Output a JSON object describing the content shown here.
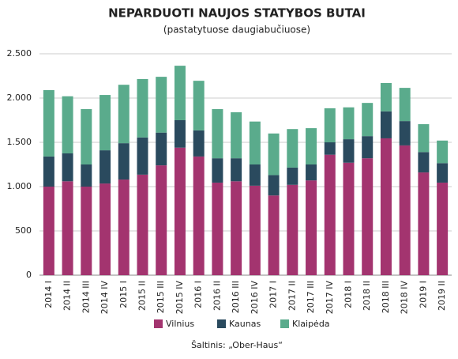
{
  "chart_data": {
    "type": "stacked_bar",
    "title": "NEPARDUOTI NAUJOS STATYBOS BUTAI",
    "subtitle": "(pastatytuose daugiabučiuose)",
    "source": "Šaltinis: „Ober-Haus“",
    "categories": [
      "2014 I",
      "2014 II",
      "2014 III",
      "2014 IV",
      "2015 I",
      "2015 II",
      "2015 III",
      "2015 IV",
      "2016 I",
      "2016 II",
      "2016 III",
      "2016 IV",
      "2017 I",
      "2017 II",
      "2017 III",
      "2017 IV",
      "2018 I",
      "2018 II",
      "2018 III",
      "2018 IV",
      "2019 I",
      "2019 II"
    ],
    "series": [
      {
        "name": "Vilnius",
        "color": "#a3346f",
        "values": [
          1000,
          1060,
          1000,
          1035,
          1080,
          1135,
          1240,
          1440,
          1340,
          1045,
          1060,
          1010,
          900,
          1020,
          1070,
          1360,
          1270,
          1320,
          1545,
          1465,
          1160,
          1045
        ]
      },
      {
        "name": "Kaunas",
        "color": "#2a4a5e",
        "values": [
          340,
          315,
          250,
          375,
          410,
          420,
          370,
          310,
          295,
          275,
          260,
          240,
          230,
          195,
          180,
          140,
          265,
          250,
          305,
          275,
          230,
          220
        ]
      },
      {
        "name": "Klaipėda",
        "color": "#5aab8c",
        "values": [
          750,
          645,
          625,
          625,
          660,
          660,
          630,
          615,
          560,
          555,
          520,
          485,
          470,
          435,
          410,
          385,
          360,
          375,
          320,
          375,
          315,
          255
        ]
      }
    ],
    "ylim": [
      0,
      2500
    ],
    "yticks": [
      0,
      500,
      {
        "value": 1000,
        "label": "1.000"
      },
      {
        "value": 1500,
        "label": "1.500"
      },
      {
        "value": 2000,
        "label": "2.000"
      },
      {
        "value": 2500,
        "label": "2.500"
      }
    ],
    "grid": true
  }
}
